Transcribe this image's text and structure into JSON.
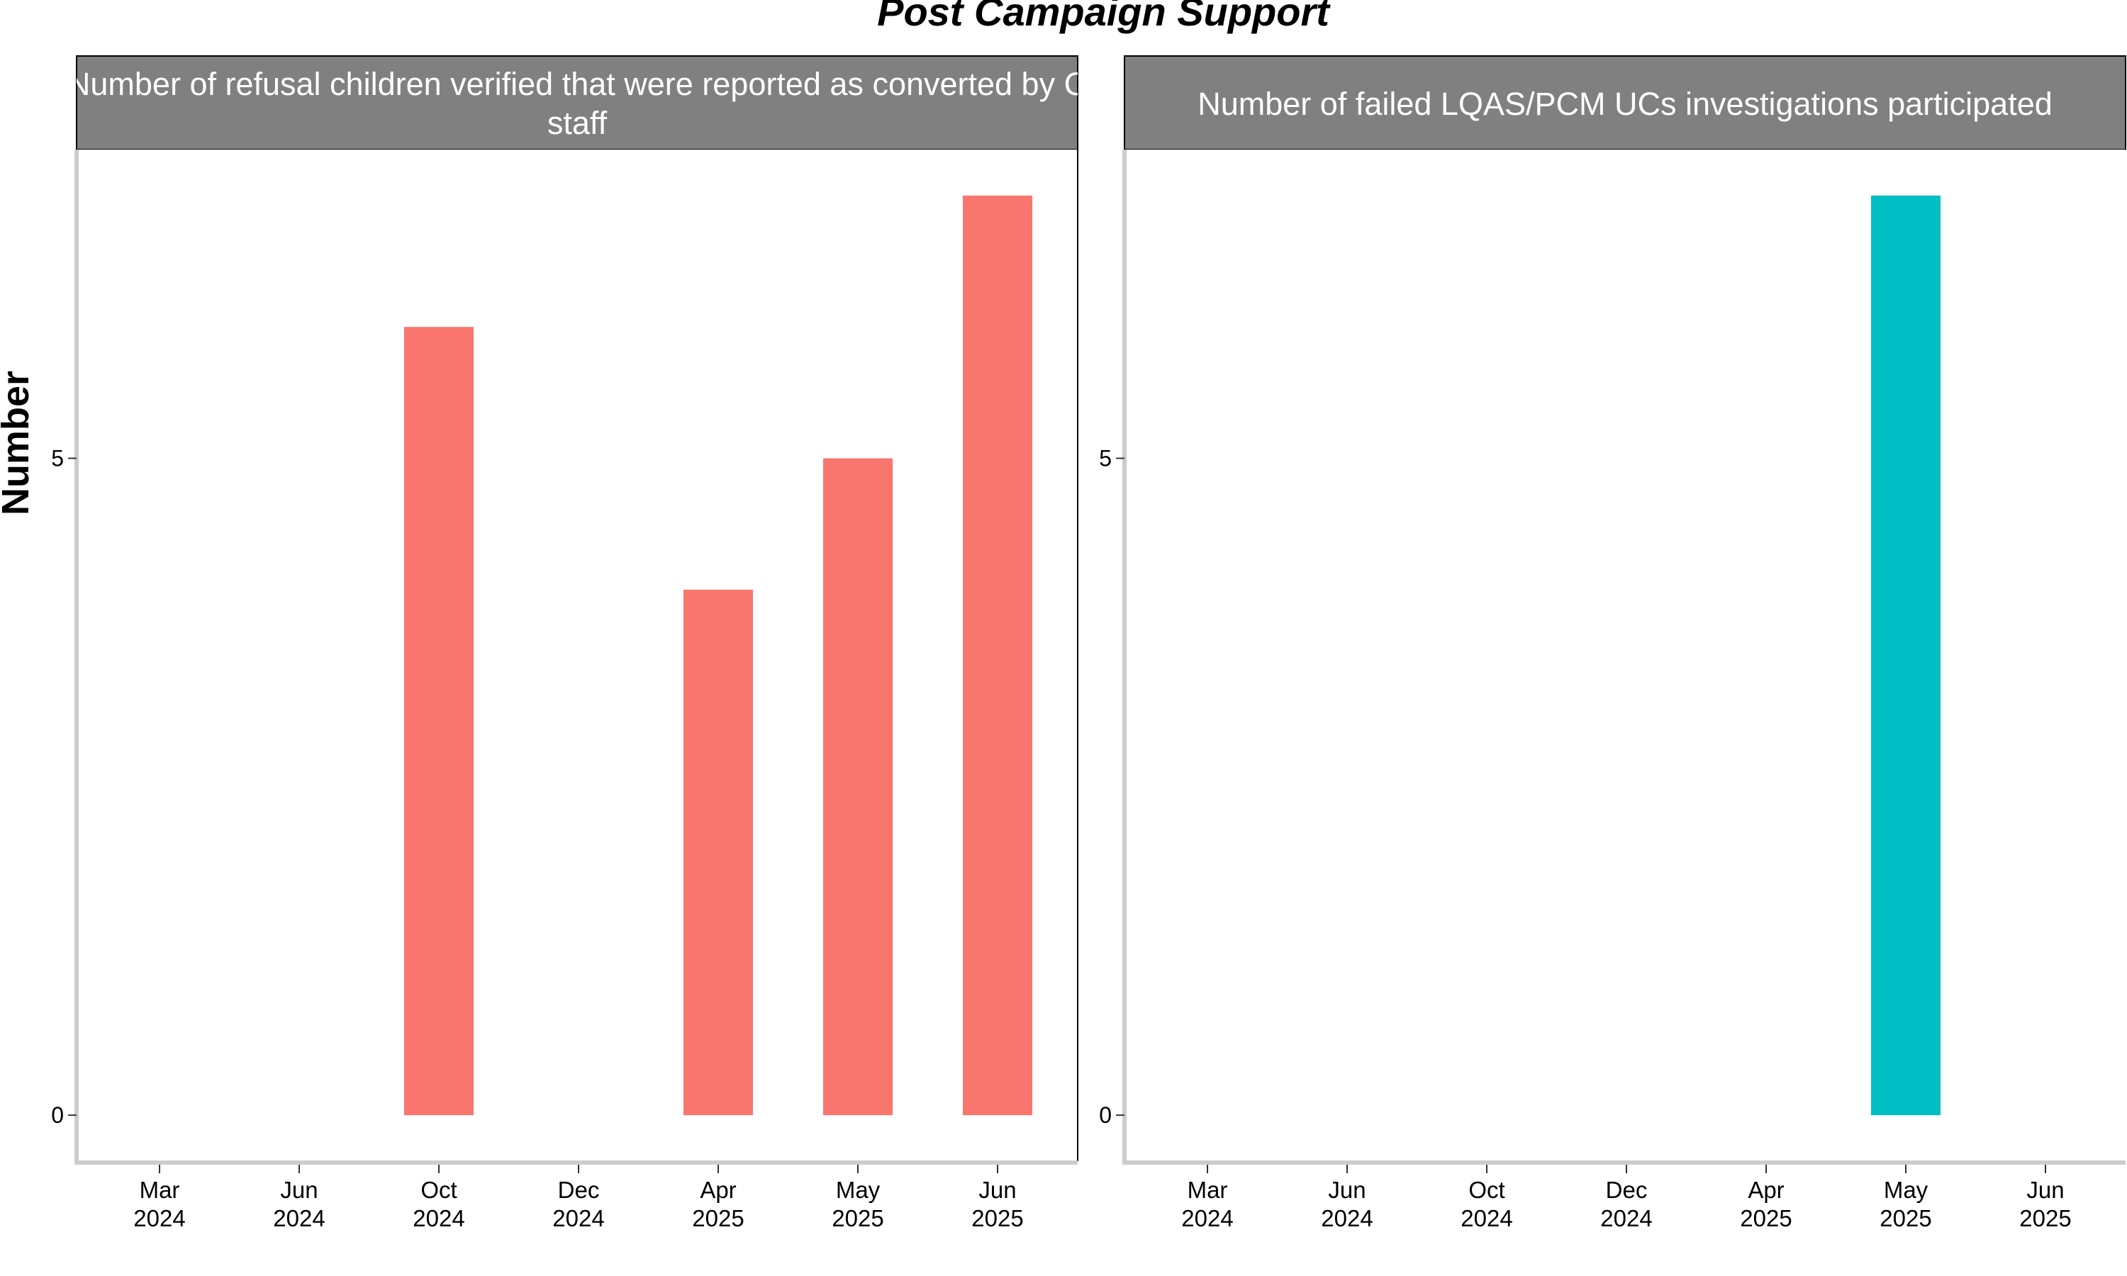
{
  "chart_data": {
    "type": "bar",
    "title": "Post Campaign Support",
    "ylabel": "Number",
    "ylim": [
      -0.35,
      7.35
    ],
    "y_ticks": [
      0,
      5
    ],
    "bar_colors": [
      "#F8766D",
      "#00BFC4"
    ],
    "panels": [
      {
        "strip_lines": [
          "Number of refusal children verified that were reported as converted by C",
          "staff"
        ],
        "x_ticks": [
          {
            "month": "Mar",
            "year": "2024"
          },
          {
            "month": "Jun",
            "year": "2024"
          },
          {
            "month": "Oct",
            "year": "2024"
          },
          {
            "month": "Dec",
            "year": "2024"
          },
          {
            "month": "Apr",
            "year": "2025"
          },
          {
            "month": "May",
            "year": "2025"
          },
          {
            "month": "Jun",
            "year": "2025"
          }
        ],
        "bars": [
          {
            "x_index": 2,
            "value": 6
          },
          {
            "x_index": 4,
            "value": 4
          },
          {
            "x_index": 5,
            "value": 5
          },
          {
            "x_index": 6,
            "value": 7
          }
        ]
      },
      {
        "strip_lines": [
          "Number of failed LQAS/PCM UCs investigations participated"
        ],
        "x_ticks": [
          {
            "month": "Mar",
            "year": "2024"
          },
          {
            "month": "Jun",
            "year": "2024"
          },
          {
            "month": "Oct",
            "year": "2024"
          },
          {
            "month": "Dec",
            "year": "2024"
          },
          {
            "month": "Apr",
            "year": "2025"
          },
          {
            "month": "May",
            "year": "2025"
          },
          {
            "month": "Jun",
            "year": "2025"
          }
        ],
        "bars": [
          {
            "x_index": 5,
            "value": 7
          }
        ]
      }
    ]
  }
}
